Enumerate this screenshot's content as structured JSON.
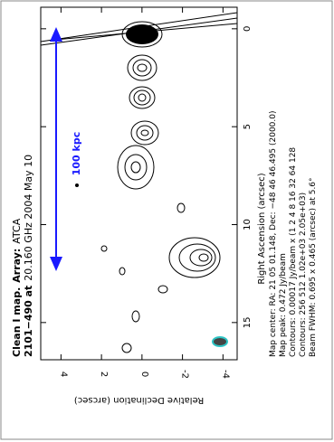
{
  "chart_data": {
    "type": "contour",
    "title_parts": [
      "Clean I map.",
      "Array:",
      "ATCA"
    ],
    "subtitle_parts": [
      "2101−490 at",
      "20.160 GHz 2004 May 10"
    ],
    "x_label": "Right Ascension (arcsec)",
    "y_label": "Relative Declination (arcsec)",
    "xlim": [
      -1.1,
      16.9
    ],
    "xticks": [
      0,
      5,
      10,
      15
    ],
    "ylim": [
      5,
      -4.7
    ],
    "yticks": [
      4,
      2,
      0,
      -2,
      -4
    ],
    "scale_bar": "100 kpc",
    "scale_color": "#1a1aff",
    "beam_color": "#2ec4c4",
    "map_info": [
      "Map center:  RA: 21 05 01.148,  Dec: −48 46 46.495 (2000.0)",
      "Map peak: 0.472 Jy/beam",
      "Contours: 0.00017 Jy/beam x (1 2 4 8 16 32 64 128",
      "Contours: 256 512 1.02e+03 2.05e+03)",
      "Beam FWHM: 0.695 x 0.465 (arcsec) at 5.6°"
    ]
  }
}
